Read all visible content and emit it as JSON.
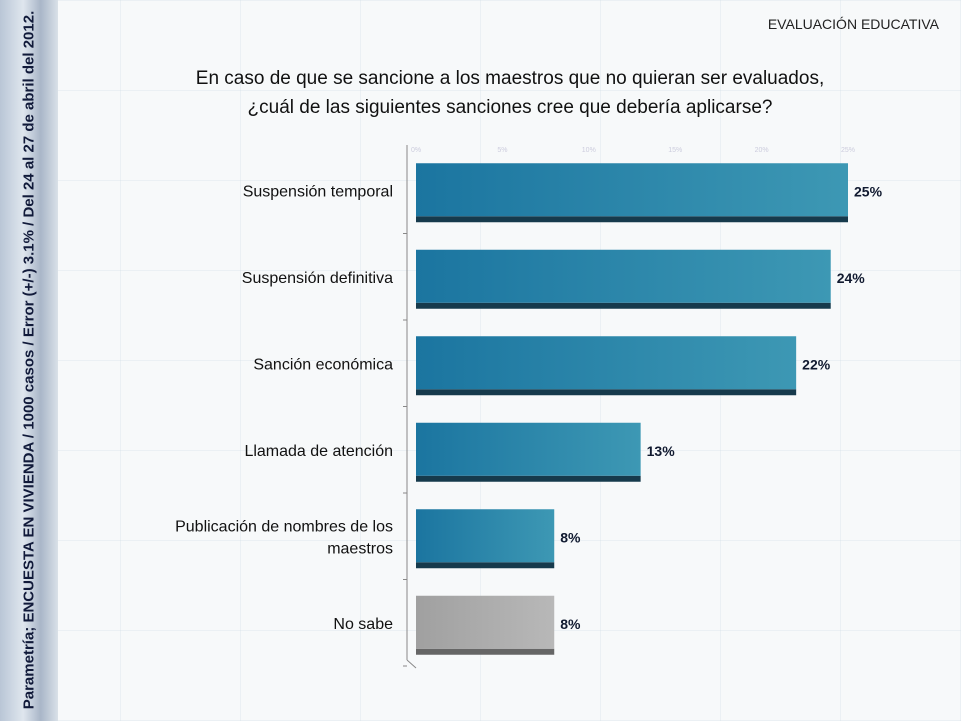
{
  "header": {
    "section": "EVALUACIÓN EDUCATIVA"
  },
  "source_note": "Parametría; ENCUESTA EN VIVIENDA / 1000 casos / Error (+/-) 3.1% / Del 24 al 27 de abril del 2012.",
  "chart_data": {
    "type": "bar",
    "orientation": "horizontal",
    "title": "En caso de que se sancione a los maestros que no quieran ser evaluados, ¿cuál de las siguientes sanciones cree que debería aplicarse?",
    "title_lines": [
      "En caso de que se sancione a los maestros que no quieran ser evaluados,",
      "¿cuál de las siguientes sanciones cree que debería aplicarse?"
    ],
    "categories": [
      [
        "Suspensión temporal"
      ],
      [
        "Suspensión definitiva"
      ],
      [
        "Sanción económica"
      ],
      [
        "Llamada de atención"
      ],
      [
        "Publicación de nombres de los",
        "maestros"
      ],
      [
        "No sabe"
      ]
    ],
    "values": [
      25,
      24,
      22,
      13,
      8,
      8
    ],
    "labels": [
      "25%",
      "24%",
      "22%",
      "13%",
      "8%",
      "8%"
    ],
    "colors": [
      "#1f7fa8",
      "#1f7fa8",
      "#1f7fa8",
      "#1f7fa8",
      "#1f7fa8",
      "#a8a8a8"
    ],
    "xlim": [
      0,
      25
    ],
    "xticks": [
      "0%",
      "5%",
      "10%",
      "15%",
      "20%",
      "25%"
    ],
    "xlabel": "",
    "ylabel": ""
  }
}
